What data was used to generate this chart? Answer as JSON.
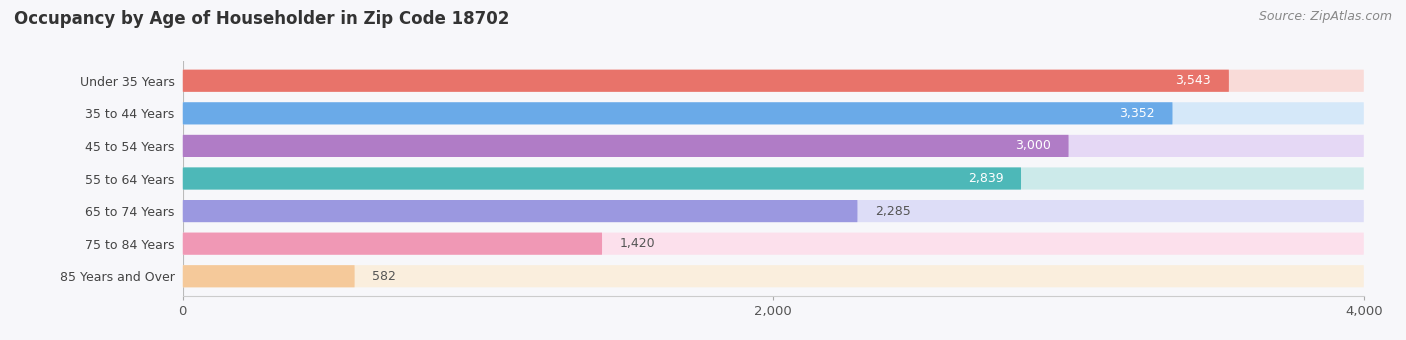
{
  "title": "Occupancy by Age of Householder in Zip Code 18702",
  "source": "Source: ZipAtlas.com",
  "categories": [
    "Under 35 Years",
    "35 to 44 Years",
    "45 to 54 Years",
    "55 to 64 Years",
    "65 to 74 Years",
    "75 to 84 Years",
    "85 Years and Over"
  ],
  "values": [
    3543,
    3352,
    3000,
    2839,
    2285,
    1420,
    582
  ],
  "bar_colors": [
    "#e8736a",
    "#6aaae8",
    "#b07cc6",
    "#4db8b8",
    "#9b98e0",
    "#f098b5",
    "#f5c99a"
  ],
  "bar_bg_colors": [
    "#f9dbd8",
    "#d5e8f9",
    "#e5d8f5",
    "#cceaea",
    "#ddddf7",
    "#fce0ec",
    "#faeedd"
  ],
  "value_label_inside": [
    true,
    true,
    true,
    true,
    false,
    false,
    false
  ],
  "xlim": [
    0,
    4000
  ],
  "xticks": [
    0,
    2000,
    4000
  ],
  "background_color": "#f7f7fa",
  "title_fontsize": 12,
  "source_fontsize": 9,
  "bar_height": 0.68,
  "label_fontsize": 9,
  "value_fontsize": 9
}
